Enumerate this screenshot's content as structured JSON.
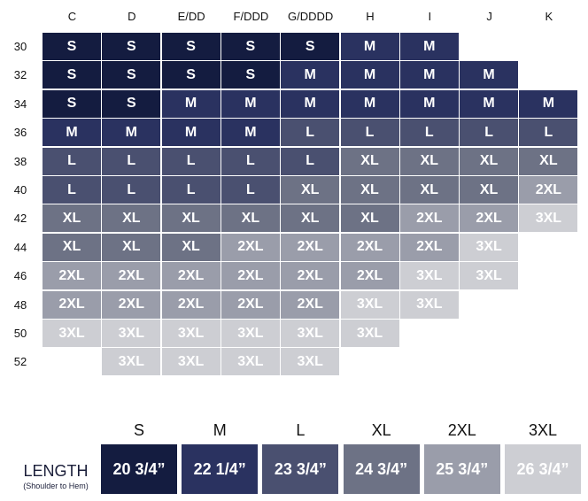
{
  "columns": [
    "C",
    "D",
    "E/DD",
    "F/DDD",
    "G/DDDD",
    "H",
    "I",
    "J",
    "K"
  ],
  "rows": [
    "30",
    "32",
    "34",
    "36",
    "38",
    "40",
    "42",
    "44",
    "46",
    "48",
    "50",
    "52"
  ],
  "grid": [
    [
      "S",
      "S",
      "S",
      "S",
      "S",
      "M",
      "M",
      "",
      ""
    ],
    [
      "S",
      "S",
      "S",
      "S",
      "M",
      "M",
      "M",
      "M",
      ""
    ],
    [
      "S",
      "S",
      "M",
      "M",
      "M",
      "M",
      "M",
      "M",
      "M"
    ],
    [
      "M",
      "M",
      "M",
      "M",
      "L",
      "L",
      "L",
      "L",
      "L"
    ],
    [
      "L",
      "L",
      "L",
      "L",
      "L",
      "XL",
      "XL",
      "XL",
      "XL"
    ],
    [
      "L",
      "L",
      "L",
      "L",
      "XL",
      "XL",
      "XL",
      "XL",
      "2XL"
    ],
    [
      "XL",
      "XL",
      "XL",
      "XL",
      "XL",
      "XL",
      "2XL",
      "2XL",
      "3XL"
    ],
    [
      "XL",
      "XL",
      "XL",
      "2XL",
      "2XL",
      "2XL",
      "2XL",
      "3XL",
      ""
    ],
    [
      "2XL",
      "2XL",
      "2XL",
      "2XL",
      "2XL",
      "2XL",
      "3XL",
      "3XL",
      ""
    ],
    [
      "2XL",
      "2XL",
      "2XL",
      "2XL",
      "2XL",
      "3XL",
      "3XL",
      "",
      ""
    ],
    [
      "3XL",
      "3XL",
      "3XL",
      "3XL",
      "3XL",
      "3XL",
      "",
      "",
      ""
    ],
    [
      "",
      "3XL",
      "3XL",
      "3XL",
      "3XL",
      "",
      "",
      "",
      ""
    ]
  ],
  "size_colors": {
    "S": "#141c40",
    "M": "#2a3260",
    "L": "#4a5070",
    "XL": "#6d7285",
    "2XL": "#9a9daa",
    "3XL": "#cdced3"
  },
  "legend": {
    "length_label": "LENGTH",
    "length_sublabel": "(Shoulder to Hem)",
    "items": [
      {
        "size": "S",
        "length": "20 3/4”"
      },
      {
        "size": "M",
        "length": "22 1/4”"
      },
      {
        "size": "L",
        "length": "23 3/4”"
      },
      {
        "size": "XL",
        "length": "24 3/4”"
      },
      {
        "size": "2XL",
        "length": "25 3/4”"
      },
      {
        "size": "3XL",
        "length": "26 3/4”"
      }
    ]
  }
}
